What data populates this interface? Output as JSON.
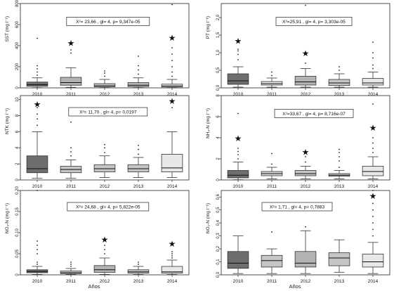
{
  "figure": {
    "x_title": "Años",
    "categories": [
      "2010",
      "2011",
      "2012",
      "2013",
      "2014"
    ]
  },
  "chart_data": [
    {
      "type": "boxplot",
      "ylabel": "SST (mg l⁻¹)",
      "ylim": [
        0,
        800
      ],
      "yticks": [
        "0",
        "200",
        "400",
        "600",
        "800"
      ],
      "stat": "X²= 23,66  , gl= 4, p= 9,347e-05",
      "categories": [
        "2010",
        "2011",
        "2012",
        "2013",
        "2014"
      ],
      "fills": [
        "#6e6e6e",
        "#b3b3b3",
        "#c6c6c6",
        "#b8b8b8",
        "#e8e8e8"
      ],
      "boxes": [
        {
          "min": 2,
          "q1": 15,
          "median": 30,
          "q3": 55,
          "max": 95,
          "outliers": [
            120,
            150,
            180,
            210,
            470
          ]
        },
        {
          "min": 5,
          "q1": 25,
          "median": 50,
          "q3": 100,
          "max": 190,
          "outliers": [
            330,
            360
          ]
        },
        {
          "min": 2,
          "q1": 10,
          "median": 20,
          "q3": 40,
          "max": 80,
          "outliers": [
            110,
            140,
            160
          ]
        },
        {
          "min": 2,
          "q1": 12,
          "median": 25,
          "q3": 50,
          "max": 95,
          "outliers": [
            130,
            170,
            210,
            300
          ]
        },
        {
          "min": 2,
          "q1": 8,
          "median": 18,
          "q3": 35,
          "max": 80,
          "outliers": [
            110,
            150,
            200,
            260,
            320,
            380,
            790
          ]
        }
      ],
      "stars": [
        "2011",
        "2014"
      ]
    },
    {
      "type": "boxplot",
      "ylabel": "PT (mg l⁻¹)",
      "ylim": [
        0,
        2.4
      ],
      "yticks": [
        "0,0",
        "0,5",
        "1,0",
        "1,5",
        "2,0"
      ],
      "stat": "X²=25,91   , gl= 4, p= 3,303e-05",
      "categories": [
        "2010",
        "2011",
        "2012",
        "2013",
        "2014"
      ],
      "fills": [
        "#6e6e6e",
        "#e8e8e8",
        "#b3b3b3",
        "#c6c6c6",
        "#e8e8e8"
      ],
      "boxes": [
        {
          "min": 0.02,
          "q1": 0.1,
          "median": 0.2,
          "q3": 0.4,
          "max": 0.6,
          "outliers": [
            0.8,
            0.95,
            1.05,
            1.1
          ]
        },
        {
          "min": 0.02,
          "q1": 0.08,
          "median": 0.12,
          "q3": 0.18,
          "max": 0.28,
          "outliers": [
            0.35,
            0.45
          ]
        },
        {
          "min": 0.02,
          "q1": 0.08,
          "median": 0.17,
          "q3": 0.33,
          "max": 0.55,
          "outliers": [
            0.7,
            2.35
          ]
        },
        {
          "min": 0.02,
          "q1": 0.07,
          "median": 0.14,
          "q3": 0.24,
          "max": 0.4,
          "outliers": [
            0.5,
            0.6
          ]
        },
        {
          "min": 0.02,
          "q1": 0.08,
          "median": 0.14,
          "q3": 0.27,
          "max": 0.45,
          "outliers": [
            0.55,
            0.65,
            0.85,
            1.0,
            1.3
          ]
        }
      ],
      "stars": [
        "2010",
        "2012"
      ]
    },
    {
      "type": "boxplot",
      "ylabel": "NTK (mg l⁻¹)",
      "ylim": [
        0,
        10.5
      ],
      "yticks": [
        "0",
        "2",
        "4",
        "6",
        "8",
        "10"
      ],
      "stat": "X²= 11,70  , gl= 4, p= 0,0197",
      "categories": [
        "2010",
        "2011",
        "2012",
        "2013",
        "2014"
      ],
      "fills": [
        "#6e6e6e",
        "#c6c6c6",
        "#c6c6c6",
        "#c6c6c6",
        "#e8e8e8"
      ],
      "boxes": [
        {
          "min": 0.2,
          "q1": 0.9,
          "median": 1.4,
          "q3": 3.0,
          "max": 6.0,
          "outliers": [
            6.8,
            7.6,
            8.2,
            9.0
          ]
        },
        {
          "min": 0.2,
          "q1": 0.9,
          "median": 1.3,
          "q3": 1.7,
          "max": 2.5,
          "outliers": [
            3.0,
            3.5,
            4.0,
            7.2
          ]
        },
        {
          "min": 0.3,
          "q1": 1.0,
          "median": 1.4,
          "q3": 1.9,
          "max": 3.0,
          "outliers": [
            3.4,
            4.0,
            4.4
          ]
        },
        {
          "min": 0.3,
          "q1": 1.0,
          "median": 1.4,
          "q3": 1.9,
          "max": 2.8,
          "outliers": [
            3.2,
            3.8,
            4.3
          ]
        },
        {
          "min": 0.3,
          "q1": 1.0,
          "median": 1.5,
          "q3": 3.2,
          "max": 6.0,
          "outliers": [
            9.0,
            9.8
          ]
        }
      ],
      "stars": [
        "2010",
        "2014"
      ]
    },
    {
      "type": "boxplot",
      "ylabel": "NH₄-N (mg l⁻¹)",
      "ylim": [
        0,
        8
      ],
      "yticks": [
        "0",
        "2",
        "4",
        "6",
        "8"
      ],
      "stat": "X²=33,67  , gl= 4, p= 8,716e-07",
      "categories": [
        "2010",
        "2011",
        "2012",
        "2013",
        "2014"
      ],
      "fills": [
        "#6e6e6e",
        "#d8d8d8",
        "#c6c6c6",
        "#c6c6c6",
        "#e8e8e8"
      ],
      "boxes": [
        {
          "min": 0.02,
          "q1": 0.2,
          "median": 0.45,
          "q3": 0.9,
          "max": 1.7,
          "outliers": [
            2.0,
            2.4,
            2.7,
            3.0,
            6.3
          ]
        },
        {
          "min": 0.1,
          "q1": 0.4,
          "median": 0.6,
          "q3": 0.8,
          "max": 1.2,
          "outliers": [
            1.5,
            2.5
          ]
        },
        {
          "min": 0.1,
          "q1": 0.4,
          "median": 0.6,
          "q3": 0.9,
          "max": 1.3,
          "outliers": [
            1.7,
            2.2
          ]
        },
        {
          "min": 0.1,
          "q1": 0.35,
          "median": 0.45,
          "q3": 0.6,
          "max": 0.9,
          "outliers": [
            1.2,
            1.8,
            2.2,
            2.6,
            2.9
          ]
        },
        {
          "min": 0.1,
          "q1": 0.4,
          "median": 0.8,
          "q3": 1.3,
          "max": 2.2,
          "outliers": [
            2.6,
            3.0,
            3.5,
            4.0,
            7.2
          ]
        }
      ],
      "stars": [
        "2010",
        "2012",
        "2014"
      ]
    },
    {
      "type": "boxplot",
      "ylabel": "NO₃-N (mg l⁻¹)",
      "ylim": [
        0,
        0.2
      ],
      "yticks": [
        "0",
        "0.05",
        "0.10",
        "0.15",
        "0.20"
      ],
      "stat": "X²= 24,68  , gl= 4, p= 5,822e-05",
      "categories": [
        "2010",
        "2011",
        "2012",
        "2013",
        "2014"
      ],
      "fills": [
        "#6e6e6e",
        "#c6c6c6",
        "#b3b3b3",
        "#c6c6c6",
        "#e8e8e8"
      ],
      "boxes": [
        {
          "min": 0.001,
          "q1": 0.005,
          "median": 0.008,
          "q3": 0.012,
          "max": 0.02,
          "outliers": [
            0.025,
            0.03,
            0.05,
            0.06,
            0.07,
            0.08,
            0.2
          ]
        },
        {
          "min": 0.001,
          "q1": 0.003,
          "median": 0.005,
          "q3": 0.009,
          "max": 0.015,
          "outliers": [
            0.02,
            0.025,
            0.03
          ]
        },
        {
          "min": 0.001,
          "q1": 0.006,
          "median": 0.012,
          "q3": 0.022,
          "max": 0.04,
          "outliers": [
            0.05,
            0.06,
            0.07
          ]
        },
        {
          "min": 0.001,
          "q1": 0.004,
          "median": 0.007,
          "q3": 0.012,
          "max": 0.02,
          "outliers": [
            0.025,
            0.03
          ]
        },
        {
          "min": 0.001,
          "q1": 0.004,
          "median": 0.007,
          "q3": 0.02,
          "max": 0.035,
          "outliers": [
            0.04,
            0.045,
            0.05,
            0.055
          ]
        }
      ],
      "stars": [
        "2012",
        "2014"
      ]
    },
    {
      "type": "boxplot",
      "ylabel": "NO₂-N (mg l⁻¹)",
      "ylim": [
        0,
        0.65
      ],
      "yticks": [
        "0.0",
        "0.1",
        "0.2",
        "0.3",
        "0.4",
        "0.5",
        "0.6"
      ],
      "stat": "X²= 1,71   , gl= 4, p= 0,7883",
      "categories": [
        "2010",
        "2011",
        "2012",
        "2013",
        "2014"
      ],
      "fills": [
        "#6e6e6e",
        "#c6c6c6",
        "#b3b3b3",
        "#c6c6c6",
        "#e8e8e8"
      ],
      "boxes": [
        {
          "min": 0.01,
          "q1": 0.05,
          "median": 0.09,
          "q3": 0.18,
          "max": 0.3,
          "outliers": []
        },
        {
          "min": 0.01,
          "q1": 0.06,
          "median": 0.11,
          "q3": 0.15,
          "max": 0.2,
          "outliers": [
            0.33
          ]
        },
        {
          "min": 0.01,
          "q1": 0.06,
          "median": 0.09,
          "q3": 0.18,
          "max": 0.34,
          "outliers": [
            0.37
          ]
        },
        {
          "min": 0.02,
          "q1": 0.07,
          "median": 0.13,
          "q3": 0.17,
          "max": 0.27,
          "outliers": []
        },
        {
          "min": 0.01,
          "q1": 0.06,
          "median": 0.1,
          "q3": 0.16,
          "max": 0.25,
          "outliers": [
            0.3,
            0.35,
            0.4,
            0.45,
            0.5,
            0.55,
            0.65
          ]
        }
      ],
      "stars": [
        "2014"
      ]
    }
  ]
}
